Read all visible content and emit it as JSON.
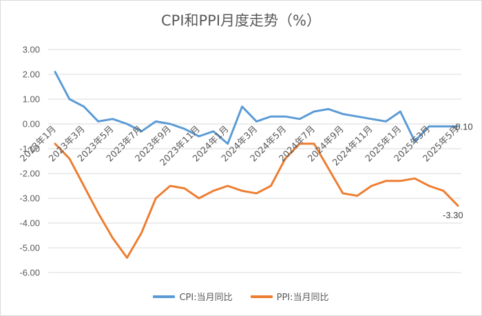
{
  "chart_data": {
    "type": "line",
    "title": "CPI和PPI月度走势（%）",
    "xlabel": "",
    "ylabel": "",
    "ylim": [
      -6,
      3
    ],
    "yticks": [
      "3.00",
      "2.00",
      "1.00",
      "0.00",
      "-1.00",
      "-2.00",
      "-3.00",
      "-4.00",
      "-5.00",
      "-6.00"
    ],
    "grid": true,
    "legend": "bottom",
    "x": [
      "2023年1月",
      "2023年2月",
      "2023年3月",
      "2023年4月",
      "2023年5月",
      "2023年6月",
      "2023年7月",
      "2023年8月",
      "2023年9月",
      "2023年10月",
      "2023年11月",
      "2023年12月",
      "2024年1月",
      "2024年2月",
      "2024年3月",
      "2024年4月",
      "2024年5月",
      "2024年6月",
      "2024年7月",
      "2024年8月",
      "2024年9月",
      "2024年10月",
      "2024年11月",
      "2024年12月",
      "2025年1月",
      "2025年2月",
      "2025年3月",
      "2025年4月",
      "2025年5月"
    ],
    "xtick_labels": [
      "2023年1月",
      "2023年3月",
      "2023年5月",
      "2023年7月",
      "2023年9月",
      "2023年11月",
      "2024年1月",
      "2024年3月",
      "2024年5月",
      "2024年7月",
      "2024年9月",
      "2024年11月",
      "2025年1月",
      "2025年3月",
      "2025年5月"
    ],
    "series": [
      {
        "name": "CPI:当月同比",
        "color": "#5b9bd5",
        "values": [
          2.1,
          1.0,
          0.7,
          0.1,
          0.2,
          0.0,
          -0.3,
          0.1,
          0.0,
          -0.2,
          -0.5,
          -0.3,
          -0.8,
          0.7,
          0.1,
          0.3,
          0.3,
          0.2,
          0.5,
          0.6,
          0.4,
          0.3,
          0.2,
          0.1,
          0.5,
          -0.7,
          -0.1,
          -0.1,
          -0.1
        ],
        "end_label": "-0.10"
      },
      {
        "name": "PPI:当月同比",
        "color": "#ed7d31",
        "values": [
          -0.8,
          -1.4,
          -2.5,
          -3.6,
          -4.6,
          -5.4,
          -4.4,
          -3.0,
          -2.5,
          -2.6,
          -3.0,
          -2.7,
          -2.5,
          -2.7,
          -2.8,
          -2.5,
          -1.4,
          -0.8,
          -0.8,
          -1.8,
          -2.8,
          -2.9,
          -2.5,
          -2.3,
          -2.3,
          -2.2,
          -2.5,
          -2.7,
          -3.3
        ],
        "end_label": "-3.30"
      }
    ]
  }
}
